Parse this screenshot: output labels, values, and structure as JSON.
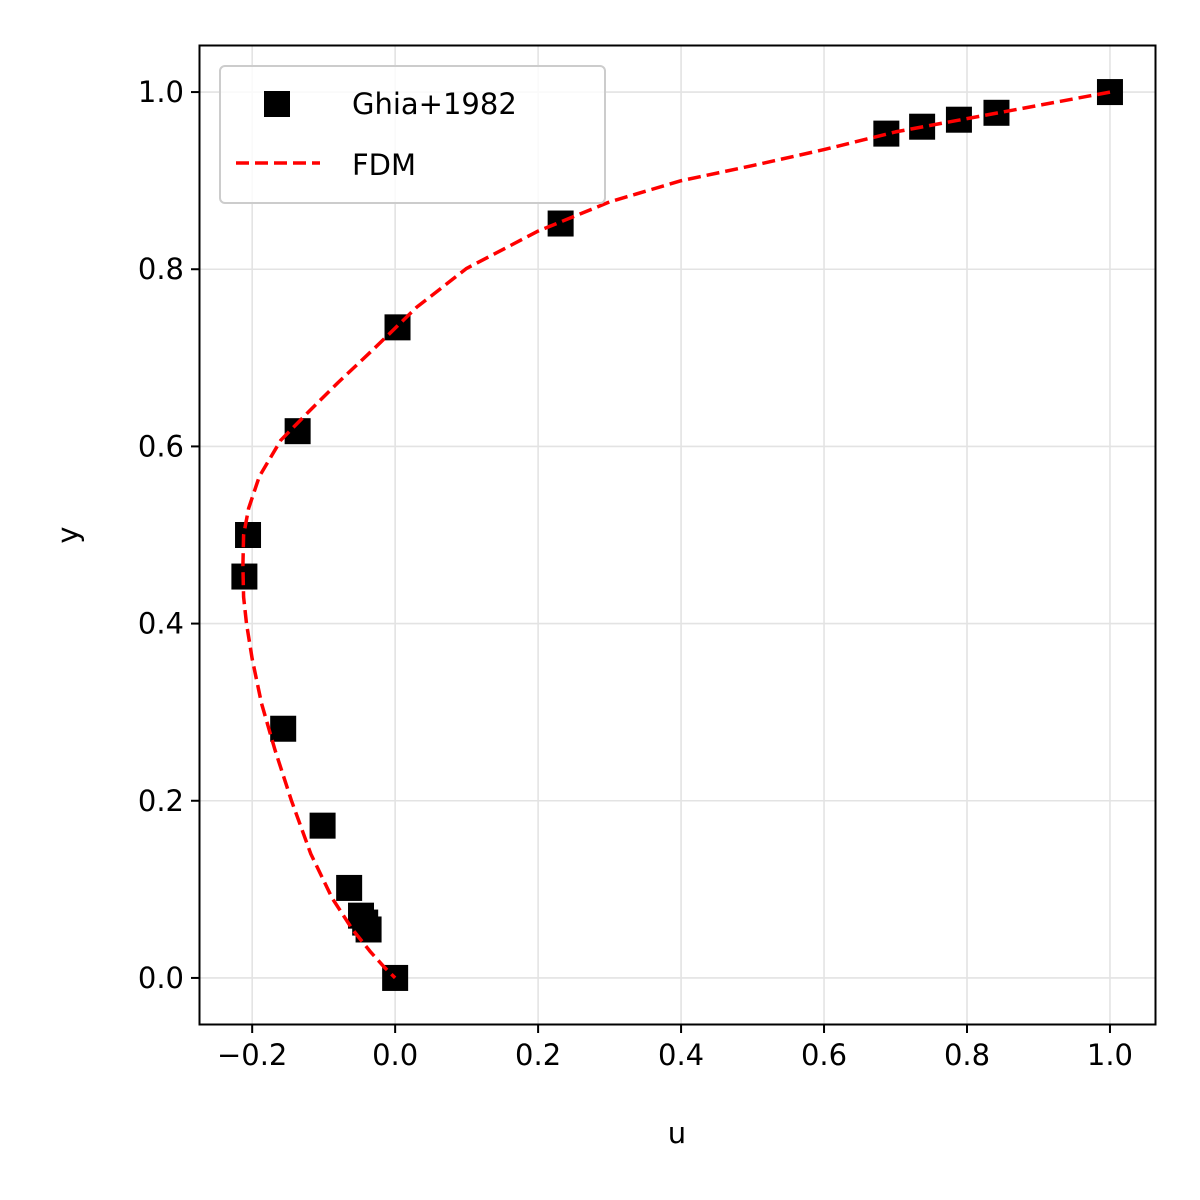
{
  "chart_data": {
    "type": "scatter",
    "title": "",
    "xlabel": "u",
    "ylabel": "y",
    "xlim": [
      -0.273,
      1.063
    ],
    "ylim": [
      -0.052,
      1.052
    ],
    "xticks": [
      -0.2,
      0.0,
      0.2,
      0.4,
      0.6,
      0.8,
      1.0
    ],
    "xtick_labels": [
      "−0.2",
      "0.0",
      "0.2",
      "0.4",
      "0.6",
      "0.8",
      "1.0"
    ],
    "yticks": [
      0.0,
      0.2,
      0.4,
      0.6,
      0.8,
      1.0
    ],
    "ytick_labels": [
      "0.0",
      "0.2",
      "0.4",
      "0.6",
      "0.8",
      "1.0"
    ],
    "grid": true,
    "legend_position": "top-left",
    "series": [
      {
        "name": "Ghia+1982",
        "kind": "scatter",
        "marker": "square",
        "color": "#000000",
        "x": [
          1.0,
          0.84123,
          0.78871,
          0.73722,
          0.68717,
          0.23151,
          0.00332,
          -0.13641,
          -0.20581,
          -0.2109,
          -0.15662,
          -0.1015,
          -0.06434,
          -0.04775,
          -0.04192,
          -0.03717,
          0.0
        ],
        "y": [
          1.0,
          0.9766,
          0.9688,
          0.9609,
          0.9531,
          0.8516,
          0.7344,
          0.6172,
          0.5,
          0.4531,
          0.2813,
          0.1719,
          0.1016,
          0.0703,
          0.0625,
          0.0547,
          0.0
        ]
      },
      {
        "name": "FDM",
        "kind": "line",
        "style": "dashed",
        "color": "#ff0000",
        "x": [
          1.0,
          0.9,
          0.8,
          0.7,
          0.6,
          0.5,
          0.4,
          0.3,
          0.2,
          0.1,
          0.03,
          -0.03,
          -0.08,
          -0.12,
          -0.16,
          -0.19,
          -0.205,
          -0.212,
          -0.213,
          -0.212,
          -0.208,
          -0.2,
          -0.187,
          -0.168,
          -0.145,
          -0.118,
          -0.088,
          -0.06,
          -0.035,
          -0.015,
          0.0
        ],
        "y": [
          1.0,
          0.985,
          0.97,
          0.955,
          0.935,
          0.917,
          0.9,
          0.876,
          0.843,
          0.801,
          0.757,
          0.71,
          0.672,
          0.64,
          0.607,
          0.566,
          0.53,
          0.5,
          0.465,
          0.43,
          0.4,
          0.36,
          0.31,
          0.257,
          0.2,
          0.14,
          0.09,
          0.055,
          0.03,
          0.012,
          0.0
        ]
      }
    ]
  }
}
